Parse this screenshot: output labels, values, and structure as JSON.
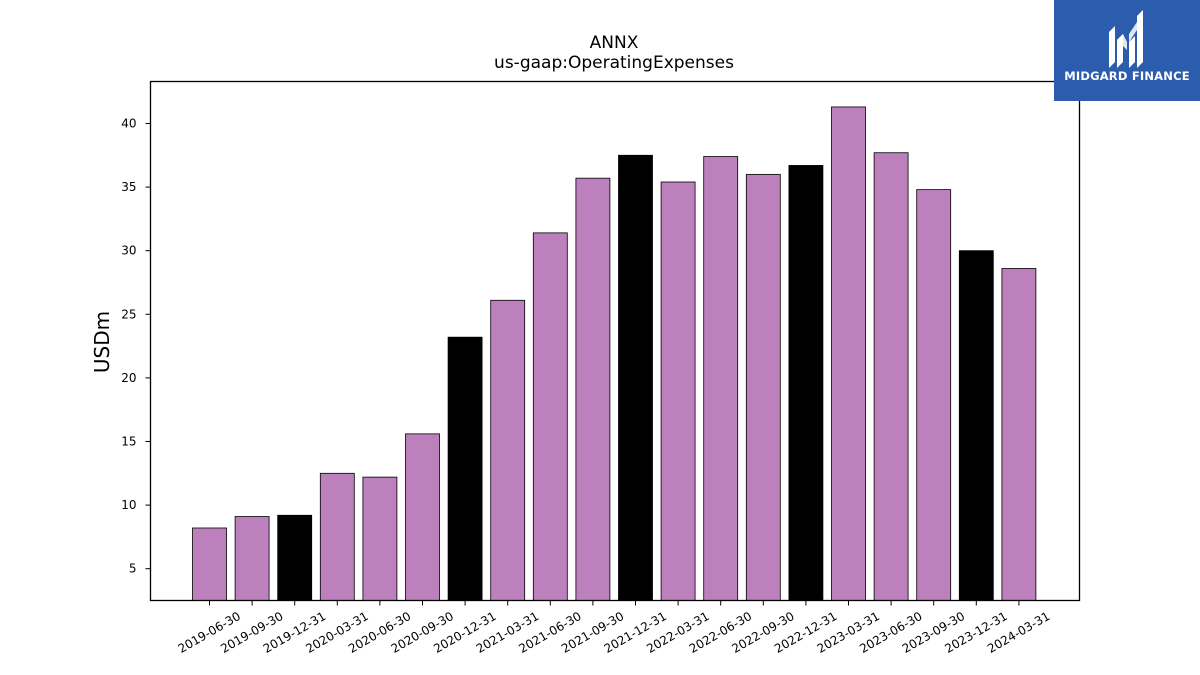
{
  "chart_data": {
    "type": "bar",
    "title": "ANNX",
    "subtitle": "us-gaap:OperatingExpenses",
    "xlabel": "",
    "ylabel": "USDm",
    "ylim": [
      2.5,
      43.3
    ],
    "yticks": [
      5,
      10,
      15,
      20,
      25,
      30,
      35,
      40
    ],
    "grid": false,
    "categories": [
      "2019-06-30",
      "2019-09-30",
      "2019-12-31",
      "2020-03-31",
      "2020-06-30",
      "2020-09-30",
      "2020-12-31",
      "2021-03-31",
      "2021-06-30",
      "2021-09-30",
      "2021-12-31",
      "2022-03-31",
      "2022-06-30",
      "2022-09-30",
      "2022-12-31",
      "2023-03-31",
      "2023-06-30",
      "2023-09-30",
      "2023-12-31",
      "2024-03-31"
    ],
    "values": [
      8.2,
      9.1,
      9.2,
      12.5,
      12.2,
      15.6,
      23.2,
      26.1,
      31.4,
      35.7,
      37.5,
      35.4,
      37.4,
      36.0,
      36.7,
      41.3,
      37.7,
      34.8,
      30.0,
      28.6
    ],
    "bar_colors": {
      "quarter": "#bc80bd",
      "year_end": "#000000"
    },
    "year_end_categories": [
      "2019-12-31",
      "2020-12-31",
      "2021-12-31",
      "2022-12-31",
      "2023-12-31"
    ]
  },
  "logo": {
    "text": "MIDGARD FINANCE",
    "background": "#2b5cad",
    "icon": "midgard-logo-icon"
  }
}
